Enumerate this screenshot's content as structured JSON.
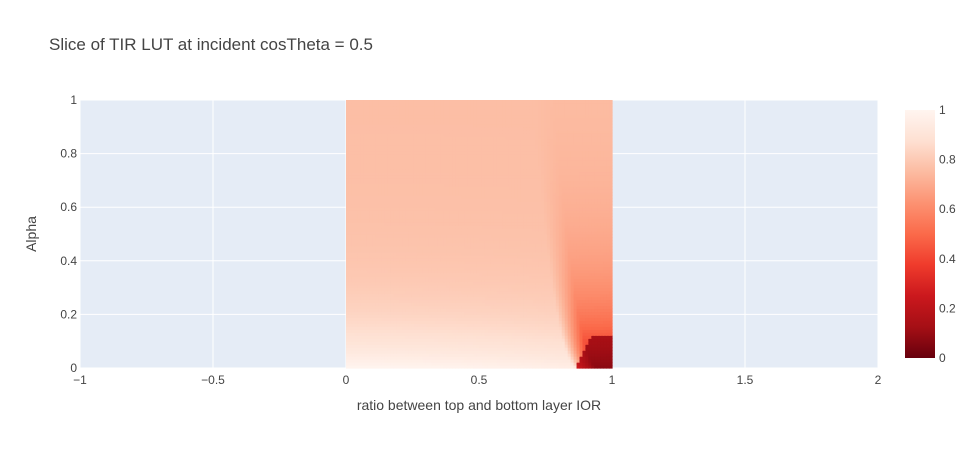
{
  "chart_data": {
    "type": "heatmap",
    "title": "Slice of TIR LUT at incident cosTheta = 0.5",
    "xlabel": "ratio between top and bottom layer IOR",
    "ylabel": "Alpha",
    "xlim": [
      -1,
      2
    ],
    "ylim": [
      0,
      1
    ],
    "x_ticks": [
      "−1",
      "−0.5",
      "0",
      "0.5",
      "1",
      "1.5",
      "2"
    ],
    "x_tick_values": [
      -1,
      -0.5,
      0,
      0.5,
      1,
      1.5,
      2
    ],
    "y_ticks": [
      "0",
      "0.2",
      "0.4",
      "0.6",
      "0.8",
      "1"
    ],
    "y_tick_values": [
      0,
      0.2,
      0.4,
      0.6,
      0.8,
      1
    ],
    "colorscale": "Reds (reversed): 0 = dark red, 1 = white",
    "colorbar": {
      "range": [
        0,
        1
      ],
      "ticks": [
        "0",
        "0.2",
        "0.4",
        "0.6",
        "0.8",
        "1"
      ],
      "tick_values": [
        0,
        0.2,
        0.4,
        0.6,
        0.8,
        1
      ]
    },
    "data_extent": {
      "x": [
        0,
        1
      ],
      "y": [
        0,
        1
      ]
    },
    "grid": true,
    "plot_background": "#e5ecf6",
    "sample_rows": [
      {
        "alpha": 1.0,
        "values": {
          "0": 0.78,
          "0.5": 0.78,
          "0.8": 0.76,
          "0.95": 0.74,
          "1": 0.73
        }
      },
      {
        "alpha": 0.6,
        "values": {
          "0": 0.81,
          "0.5": 0.79,
          "0.8": 0.76,
          "0.95": 0.7,
          "1": 0.66
        }
      },
      {
        "alpha": 0.3,
        "values": {
          "0": 0.9,
          "0.5": 0.84,
          "0.8": 0.76,
          "0.95": 0.55,
          "1": 0.45
        }
      },
      {
        "alpha": 0.1,
        "values": {
          "0": 0.99,
          "0.5": 0.95,
          "0.8": 0.88,
          "0.95": 0.25,
          "1": 0.12
        }
      },
      {
        "alpha": 0.0,
        "values": {
          "0": 1.0,
          "0.5": 1.0,
          "0.8": 0.98,
          "0.95": 0.05,
          "1": 0.0
        }
      }
    ]
  }
}
